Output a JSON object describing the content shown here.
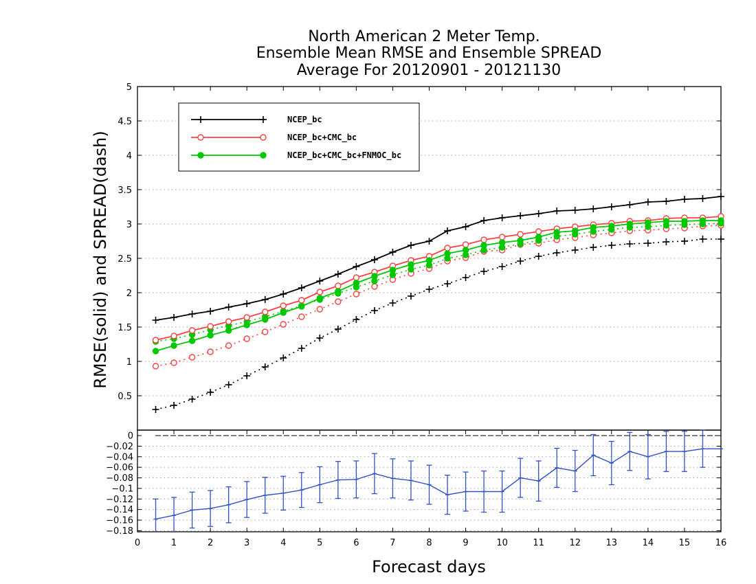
{
  "chart_data": [
    {
      "type": "line",
      "title": [
        "North American 2 Meter Temp.",
        "Ensemble Mean RMSE and Ensemble SPREAD",
        "Average For 20120901 - 20121130"
      ],
      "ylabel": "RMSE(solid) and SPREAD(dash)",
      "xlim": [
        0,
        16
      ],
      "ylim": [
        0,
        5
      ],
      "yticks": [
        0.5,
        1,
        1.5,
        2,
        2.5,
        3,
        3.5,
        4,
        4.5,
        5
      ],
      "ytick_labels": [
        "0.5",
        "1",
        "1.5",
        "2",
        "2.5",
        "3",
        "3.5",
        "4",
        "4.5",
        "5"
      ],
      "grid": true,
      "legend_position": "top-left",
      "x": [
        0.5,
        1,
        1.5,
        2,
        2.5,
        3,
        3.5,
        4,
        4.5,
        5,
        5.5,
        6,
        6.5,
        7,
        7.5,
        8,
        8.5,
        9,
        9.5,
        10,
        10.5,
        11,
        11.5,
        12,
        12.5,
        13,
        13.5,
        14,
        14.5,
        15,
        15.5,
        16
      ],
      "series": [
        {
          "name": "NCEP_bc",
          "metric": "RMSE",
          "style": "solid",
          "marker": "plus",
          "color": "#000000",
          "values": [
            1.6,
            1.64,
            1.69,
            1.73,
            1.79,
            1.84,
            1.9,
            1.98,
            2.07,
            2.17,
            2.27,
            2.38,
            2.48,
            2.59,
            2.69,
            2.75,
            2.9,
            2.96,
            3.05,
            3.09,
            3.12,
            3.15,
            3.19,
            3.2,
            3.22,
            3.25,
            3.28,
            3.32,
            3.33,
            3.36,
            3.37,
            3.4
          ]
        },
        {
          "name": "NCEP_bc+CMC_bc",
          "metric": "RMSE",
          "style": "solid",
          "marker": "open-circle",
          "color": "#ff4040",
          "values": [
            1.31,
            1.37,
            1.45,
            1.51,
            1.58,
            1.64,
            1.72,
            1.81,
            1.89,
            2.01,
            2.1,
            2.22,
            2.3,
            2.39,
            2.47,
            2.53,
            2.65,
            2.7,
            2.77,
            2.81,
            2.85,
            2.89,
            2.93,
            2.96,
            2.99,
            3.01,
            3.04,
            3.05,
            3.08,
            3.09,
            3.09,
            3.11
          ]
        },
        {
          "name": "NCEP_bc+CMC_bc+FNMOC_bc",
          "metric": "RMSE",
          "style": "solid",
          "marker": "filled-circle",
          "color": "#00c800",
          "values": [
            1.15,
            1.23,
            1.3,
            1.38,
            1.45,
            1.53,
            1.61,
            1.71,
            1.8,
            1.92,
            2.02,
            2.14,
            2.24,
            2.33,
            2.41,
            2.47,
            2.57,
            2.62,
            2.69,
            2.73,
            2.76,
            2.81,
            2.88,
            2.9,
            2.95,
            2.97,
            3.0,
            3.02,
            3.04,
            3.04,
            3.05,
            3.05
          ]
        },
        {
          "name": "NCEP_bc",
          "metric": "SPREAD",
          "style": "dash",
          "marker": "plus",
          "color": "#000000",
          "values": [
            0.3,
            0.36,
            0.45,
            0.55,
            0.66,
            0.79,
            0.92,
            1.05,
            1.19,
            1.34,
            1.47,
            1.61,
            1.74,
            1.85,
            1.95,
            2.05,
            2.13,
            2.22,
            2.31,
            2.38,
            2.46,
            2.53,
            2.58,
            2.62,
            2.66,
            2.69,
            2.71,
            2.72,
            2.74,
            2.75,
            2.78,
            2.78
          ]
        },
        {
          "name": "NCEP_bc+CMC_bc",
          "metric": "SPREAD",
          "style": "dash",
          "marker": "open-circle",
          "color": "#ff4040",
          "values": [
            0.93,
            0.98,
            1.06,
            1.14,
            1.23,
            1.33,
            1.43,
            1.54,
            1.65,
            1.76,
            1.87,
            1.98,
            2.09,
            2.19,
            2.28,
            2.35,
            2.46,
            2.51,
            2.6,
            2.62,
            2.7,
            2.72,
            2.77,
            2.8,
            2.84,
            2.87,
            2.9,
            2.91,
            2.93,
            2.94,
            2.97,
            2.98
          ]
        },
        {
          "name": "NCEP_bc+CMC_bc+FNMOC_bc",
          "metric": "SPREAD",
          "style": "dash",
          "marker": "filled-circle",
          "color": "#00c800",
          "values": [
            1.29,
            1.33,
            1.39,
            1.46,
            1.52,
            1.58,
            1.65,
            1.73,
            1.81,
            1.9,
            1.99,
            2.08,
            2.17,
            2.26,
            2.34,
            2.4,
            2.5,
            2.55,
            2.62,
            2.66,
            2.71,
            2.76,
            2.82,
            2.85,
            2.89,
            2.92,
            2.95,
            2.96,
            2.98,
            2.99,
            3.0,
            3.01
          ]
        }
      ]
    },
    {
      "type": "line",
      "xlabel": "Forecast days",
      "xlim": [
        0,
        16
      ],
      "ylim": [
        -0.19,
        0.0
      ],
      "xticks": [
        0,
        1,
        2,
        3,
        4,
        5,
        6,
        7,
        8,
        9,
        10,
        11,
        12,
        13,
        14,
        15,
        16
      ],
      "xtick_labels": [
        "0",
        "1",
        "2",
        "3",
        "4",
        "5",
        "6",
        "7",
        "8",
        "9",
        "10",
        "11",
        "12",
        "13",
        "14",
        "15",
        "16"
      ],
      "yticks": [
        0,
        -0.02,
        -0.04,
        -0.06,
        -0.08,
        -0.1,
        -0.12,
        -0.14,
        -0.16,
        -0.18
      ],
      "ytick_labels": [
        "0",
        "−0.02",
        "−0.04",
        "−0.06",
        "−0.08",
        "−0.1",
        "−0.12",
        "−0.14",
        "−0.16",
        "−0.18"
      ],
      "x": [
        0.5,
        1,
        1.5,
        2,
        2.5,
        3,
        3.5,
        4,
        4.5,
        5,
        5.5,
        6,
        6.5,
        7,
        7.5,
        8,
        8.5,
        9,
        9.5,
        10,
        10.5,
        11,
        11.5,
        12,
        12.5,
        13,
        13.5,
        14,
        14.5,
        15,
        15.5,
        16
      ],
      "reference_line": 0,
      "series": [
        {
          "color": "#3050c8",
          "values": [
            -0.158,
            -0.151,
            -0.141,
            -0.138,
            -0.131,
            -0.121,
            -0.113,
            -0.109,
            -0.103,
            -0.093,
            -0.084,
            -0.083,
            -0.072,
            -0.081,
            -0.085,
            -0.093,
            -0.112,
            -0.106,
            -0.106,
            -0.106,
            -0.08,
            -0.086,
            -0.061,
            -0.067,
            -0.037,
            -0.052,
            -0.03,
            -0.04,
            -0.03,
            -0.03,
            -0.025,
            -0.025
          ],
          "error_low": [
            -0.196,
            -0.185,
            -0.175,
            -0.172,
            -0.165,
            -0.155,
            -0.147,
            -0.141,
            -0.136,
            -0.127,
            -0.119,
            -0.118,
            -0.11,
            -0.118,
            -0.122,
            -0.13,
            -0.149,
            -0.143,
            -0.145,
            -0.145,
            -0.117,
            -0.124,
            -0.098,
            -0.106,
            -0.076,
            -0.093,
            -0.066,
            -0.082,
            -0.068,
            -0.068,
            -0.06,
            null
          ],
          "error_high": [
            -0.12,
            -0.117,
            -0.107,
            -0.104,
            -0.097,
            -0.087,
            -0.079,
            -0.077,
            -0.07,
            -0.059,
            -0.049,
            -0.048,
            -0.034,
            -0.044,
            -0.048,
            -0.056,
            -0.075,
            -0.069,
            -0.067,
            -0.067,
            -0.043,
            -0.048,
            -0.024,
            -0.028,
            0.002,
            -0.011,
            0.006,
            0.002,
            0.008,
            0.008,
            0.01,
            null
          ]
        }
      ]
    }
  ]
}
